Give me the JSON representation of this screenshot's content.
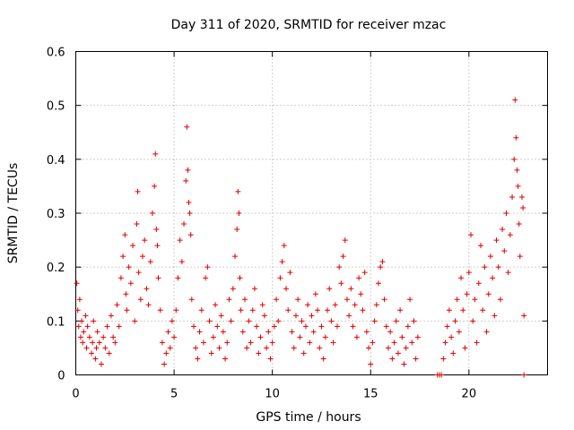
{
  "chart_data": {
    "type": "scatter",
    "title": "Day 311 of 2020, SRMTID for receiver mzac",
    "xlabel": "GPS time / hours",
    "ylabel": "SRMTID / TECUs",
    "xlim": [
      0,
      24
    ],
    "ylim": [
      0,
      0.6
    ],
    "xticks": [
      0,
      5,
      10,
      15,
      20
    ],
    "xtick_labels": [
      "0",
      "5",
      "10",
      "15",
      "20"
    ],
    "yticks": [
      0,
      0.1,
      0.2,
      0.3,
      0.4,
      0.5,
      0.6
    ],
    "ytick_labels": [
      "0",
      "0.1",
      "0.2",
      "0.3",
      "0.4",
      "0.5",
      "0.6"
    ],
    "grid": true,
    "legend": "none",
    "marker": "plus",
    "color": "#e00000",
    "series": [
      {
        "name": "SRMTID",
        "points": [
          [
            0.05,
            0.17
          ],
          [
            0.1,
            0.12
          ],
          [
            0.15,
            0.09
          ],
          [
            0.2,
            0.14
          ],
          [
            0.25,
            0.07
          ],
          [
            0.3,
            0.1
          ],
          [
            0.35,
            0.06
          ],
          [
            0.4,
            0.08
          ],
          [
            0.5,
            0.11
          ],
          [
            0.55,
            0.05
          ],
          [
            0.6,
            0.09
          ],
          [
            0.7,
            0.07
          ],
          [
            0.8,
            0.04
          ],
          [
            0.85,
            0.06
          ],
          [
            0.9,
            0.1
          ],
          [
            1.0,
            0.03
          ],
          [
            1.05,
            0.05
          ],
          [
            1.1,
            0.08
          ],
          [
            1.2,
            0.06
          ],
          [
            1.3,
            0.02
          ],
          [
            1.4,
            0.07
          ],
          [
            1.5,
            0.05
          ],
          [
            1.6,
            0.09
          ],
          [
            1.7,
            0.04
          ],
          [
            1.8,
            0.11
          ],
          [
            1.9,
            0.07
          ],
          [
            2.0,
            0.06
          ],
          [
            2.1,
            0.13
          ],
          [
            2.2,
            0.09
          ],
          [
            2.3,
            0.18
          ],
          [
            2.4,
            0.22
          ],
          [
            2.5,
            0.26
          ],
          [
            2.55,
            0.15
          ],
          [
            2.6,
            0.12
          ],
          [
            2.7,
            0.2
          ],
          [
            2.8,
            0.17
          ],
          [
            2.9,
            0.24
          ],
          [
            3.0,
            0.1
          ],
          [
            3.1,
            0.28
          ],
          [
            3.15,
            0.34
          ],
          [
            3.2,
            0.19
          ],
          [
            3.3,
            0.14
          ],
          [
            3.4,
            0.22
          ],
          [
            3.5,
            0.25
          ],
          [
            3.6,
            0.16
          ],
          [
            3.7,
            0.13
          ],
          [
            3.8,
            0.21
          ],
          [
            3.9,
            0.3
          ],
          [
            4.0,
            0.35
          ],
          [
            4.05,
            0.41
          ],
          [
            4.1,
            0.27
          ],
          [
            4.15,
            0.24
          ],
          [
            4.2,
            0.18
          ],
          [
            4.3,
            0.12
          ],
          [
            4.4,
            0.06
          ],
          [
            4.5,
            0.02
          ],
          [
            4.6,
            0.04
          ],
          [
            4.7,
            0.08
          ],
          [
            4.8,
            0.05
          ],
          [
            4.9,
            0.1
          ],
          [
            5.0,
            0.07
          ],
          [
            5.1,
            0.12
          ],
          [
            5.2,
            0.18
          ],
          [
            5.3,
            0.25
          ],
          [
            5.4,
            0.21
          ],
          [
            5.5,
            0.28
          ],
          [
            5.6,
            0.36
          ],
          [
            5.65,
            0.46
          ],
          [
            5.7,
            0.38
          ],
          [
            5.75,
            0.32
          ],
          [
            5.8,
            0.3
          ],
          [
            5.85,
            0.26
          ],
          [
            5.9,
            0.14
          ],
          [
            6.0,
            0.09
          ],
          [
            6.1,
            0.05
          ],
          [
            6.2,
            0.03
          ],
          [
            6.3,
            0.08
          ],
          [
            6.4,
            0.12
          ],
          [
            6.5,
            0.06
          ],
          [
            6.6,
            0.18
          ],
          [
            6.7,
            0.2
          ],
          [
            6.8,
            0.1
          ],
          [
            6.9,
            0.04
          ],
          [
            7.0,
            0.07
          ],
          [
            7.1,
            0.13
          ],
          [
            7.2,
            0.09
          ],
          [
            7.3,
            0.05
          ],
          [
            7.4,
            0.11
          ],
          [
            7.5,
            0.08
          ],
          [
            7.6,
            0.03
          ],
          [
            7.7,
            0.06
          ],
          [
            7.8,
            0.14
          ],
          [
            7.9,
            0.1
          ],
          [
            8.0,
            0.16
          ],
          [
            8.1,
            0.22
          ],
          [
            8.2,
            0.27
          ],
          [
            8.25,
            0.34
          ],
          [
            8.3,
            0.3
          ],
          [
            8.35,
            0.18
          ],
          [
            8.4,
            0.12
          ],
          [
            8.5,
            0.08
          ],
          [
            8.6,
            0.14
          ],
          [
            8.7,
            0.05
          ],
          [
            8.8,
            0.1
          ],
          [
            8.9,
            0.06
          ],
          [
            9.0,
            0.12
          ],
          [
            9.1,
            0.16
          ],
          [
            9.2,
            0.09
          ],
          [
            9.3,
            0.04
          ],
          [
            9.4,
            0.07
          ],
          [
            9.5,
            0.13
          ],
          [
            9.6,
            0.11
          ],
          [
            9.7,
            0.05
          ],
          [
            9.8,
            0.08
          ],
          [
            9.9,
            0.03
          ],
          [
            10.0,
            0.06
          ],
          [
            10.1,
            0.09
          ],
          [
            10.2,
            0.14
          ],
          [
            10.3,
            0.1
          ],
          [
            10.4,
            0.18
          ],
          [
            10.5,
            0.21
          ],
          [
            10.6,
            0.24
          ],
          [
            10.7,
            0.16
          ],
          [
            10.8,
            0.12
          ],
          [
            10.9,
            0.19
          ],
          [
            11.0,
            0.08
          ],
          [
            11.1,
            0.05
          ],
          [
            11.2,
            0.11
          ],
          [
            11.3,
            0.14
          ],
          [
            11.4,
            0.07
          ],
          [
            11.5,
            0.1
          ],
          [
            11.6,
            0.04
          ],
          [
            11.7,
            0.09
          ],
          [
            11.8,
            0.13
          ],
          [
            11.9,
            0.06
          ],
          [
            12.0,
            0.11
          ],
          [
            12.1,
            0.08
          ],
          [
            12.2,
            0.15
          ],
          [
            12.3,
            0.12
          ],
          [
            12.4,
            0.05
          ],
          [
            12.5,
            0.09
          ],
          [
            12.6,
            0.03
          ],
          [
            12.7,
            0.07
          ],
          [
            12.8,
            0.12
          ],
          [
            12.9,
            0.16
          ],
          [
            13.0,
            0.1
          ],
          [
            13.1,
            0.06
          ],
          [
            13.2,
            0.13
          ],
          [
            13.3,
            0.09
          ],
          [
            13.4,
            0.2
          ],
          [
            13.5,
            0.17
          ],
          [
            13.6,
            0.22
          ],
          [
            13.7,
            0.25
          ],
          [
            13.8,
            0.14
          ],
          [
            13.9,
            0.11
          ],
          [
            14.0,
            0.16
          ],
          [
            14.1,
            0.09
          ],
          [
            14.2,
            0.13
          ],
          [
            14.3,
            0.07
          ],
          [
            14.4,
            0.18
          ],
          [
            14.5,
            0.15
          ],
          [
            14.6,
            0.12
          ],
          [
            14.7,
            0.19
          ],
          [
            14.8,
            0.08
          ],
          [
            14.9,
            0.05
          ],
          [
            15.0,
            0.02
          ],
          [
            15.1,
            0.06
          ],
          [
            15.2,
            0.1
          ],
          [
            15.3,
            0.13
          ],
          [
            15.4,
            0.17
          ],
          [
            15.5,
            0.2
          ],
          [
            15.6,
            0.21
          ],
          [
            15.7,
            0.14
          ],
          [
            15.8,
            0.09
          ],
          [
            15.9,
            0.05
          ],
          [
            16.0,
            0.08
          ],
          [
            16.1,
            0.03
          ],
          [
            16.2,
            0.06
          ],
          [
            16.3,
            0.1
          ],
          [
            16.4,
            0.04
          ],
          [
            16.5,
            0.12
          ],
          [
            16.6,
            0.07
          ],
          [
            16.7,
            0.02
          ],
          [
            16.8,
            0.05
          ],
          [
            16.9,
            0.09
          ],
          [
            17.0,
            0.14
          ],
          [
            17.1,
            0.06
          ],
          [
            17.2,
            0.1
          ],
          [
            17.3,
            0.03
          ],
          [
            17.4,
            0.07
          ],
          [
            18.4,
            0.0
          ],
          [
            18.5,
            0.0
          ],
          [
            18.6,
            0.0
          ],
          [
            18.7,
            0.03
          ],
          [
            18.8,
            0.06
          ],
          [
            18.9,
            0.09
          ],
          [
            19.0,
            0.12
          ],
          [
            19.1,
            0.07
          ],
          [
            19.2,
            0.04
          ],
          [
            19.3,
            0.1
          ],
          [
            19.4,
            0.14
          ],
          [
            19.5,
            0.08
          ],
          [
            19.6,
            0.18
          ],
          [
            19.7,
            0.12
          ],
          [
            19.8,
            0.05
          ],
          [
            19.9,
            0.15
          ],
          [
            20.0,
            0.19
          ],
          [
            20.1,
            0.26
          ],
          [
            20.2,
            0.1
          ],
          [
            20.3,
            0.14
          ],
          [
            20.4,
            0.06
          ],
          [
            20.5,
            0.17
          ],
          [
            20.6,
            0.24
          ],
          [
            20.7,
            0.12
          ],
          [
            20.8,
            0.2
          ],
          [
            20.9,
            0.08
          ],
          [
            21.0,
            0.15
          ],
          [
            21.1,
            0.22
          ],
          [
            21.2,
            0.18
          ],
          [
            21.3,
            0.11
          ],
          [
            21.4,
            0.25
          ],
          [
            21.5,
            0.2
          ],
          [
            21.6,
            0.14
          ],
          [
            21.7,
            0.27
          ],
          [
            21.8,
            0.23
          ],
          [
            21.9,
            0.3
          ],
          [
            22.0,
            0.19
          ],
          [
            22.1,
            0.26
          ],
          [
            22.2,
            0.33
          ],
          [
            22.3,
            0.4
          ],
          [
            22.35,
            0.51
          ],
          [
            22.4,
            0.44
          ],
          [
            22.45,
            0.38
          ],
          [
            22.5,
            0.35
          ],
          [
            22.55,
            0.28
          ],
          [
            22.6,
            0.22
          ],
          [
            22.7,
            0.33
          ],
          [
            22.75,
            0.31
          ],
          [
            22.8,
            0.11
          ],
          [
            22.8,
            0.0
          ]
        ]
      }
    ]
  }
}
